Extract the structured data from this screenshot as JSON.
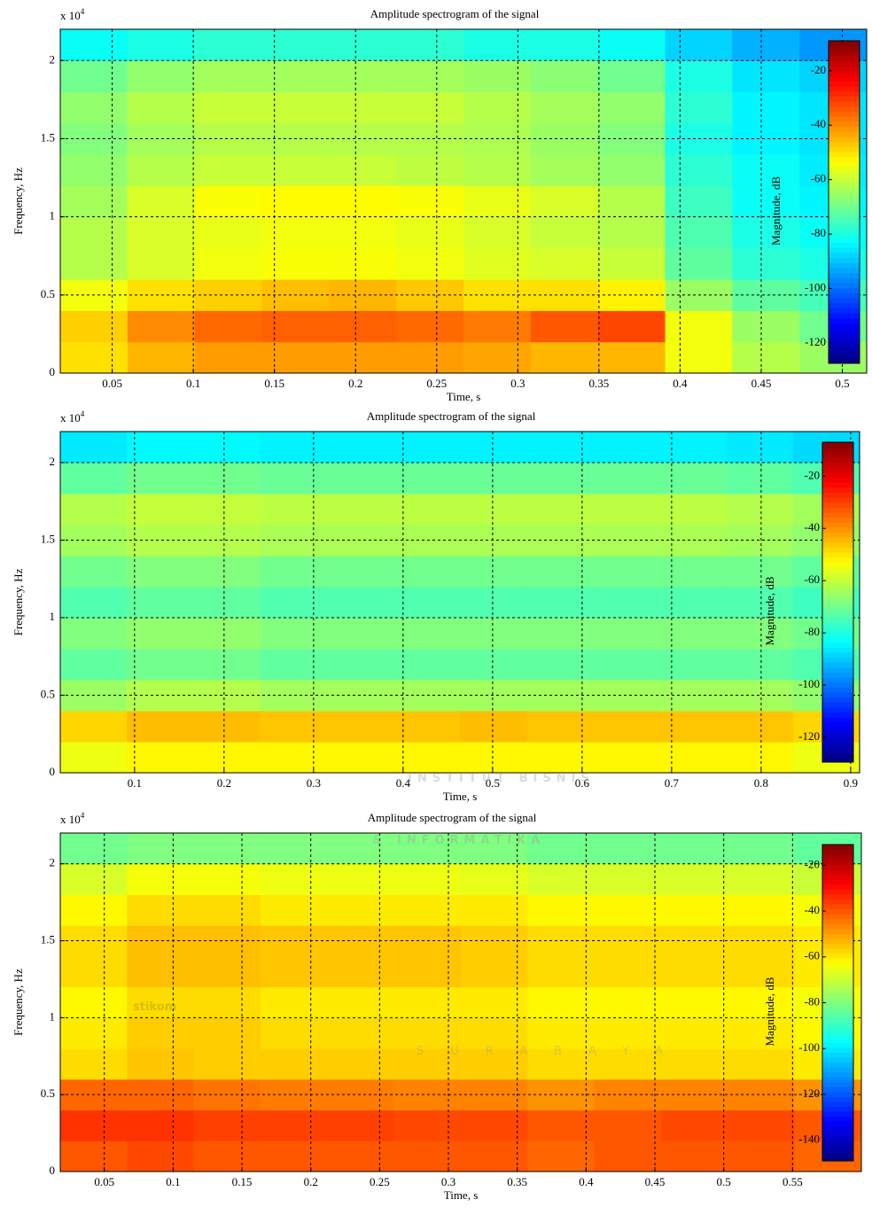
{
  "chart_data": [
    {
      "type": "heatmap",
      "title": "Amplitude spectrogram of the signal",
      "x_label": "Time, s",
      "y_label": "Frequency, Hz",
      "y_scale_label": "x 10",
      "y_scale_exponent": "4",
      "colorbar_label": "Magnitude, dB",
      "colormap": "jet",
      "grid": true,
      "xlim": [
        0.018,
        0.515
      ],
      "ylim": [
        0,
        2.2
      ],
      "clim": [
        -127.5,
        -9
      ],
      "xticks": [
        0.05,
        0.1,
        0.15,
        0.2,
        0.25,
        0.3,
        0.35,
        0.4,
        0.45,
        0.5
      ],
      "yticks": [
        0,
        0.5,
        1,
        1.5,
        2
      ],
      "cticks": [
        -20,
        -40,
        -60,
        -80,
        -100,
        -120
      ],
      "z": [
        [
          -50,
          -45,
          -42,
          -42,
          -42,
          -42,
          -43,
          -45,
          -45,
          -55,
          -62,
          -65
        ],
        [
          -48,
          -40,
          -36,
          -35,
          -35,
          -36,
          -38,
          -34,
          -32,
          -55,
          -65,
          -70
        ],
        [
          -55,
          -50,
          -48,
          -46,
          -45,
          -47,
          -50,
          -50,
          -52,
          -65,
          -72,
          -75
        ],
        [
          -62,
          -58,
          -55,
          -54,
          -54,
          -55,
          -57,
          -58,
          -60,
          -72,
          -78,
          -80
        ],
        [
          -62,
          -58,
          -56,
          -55,
          -55,
          -56,
          -58,
          -60,
          -62,
          -74,
          -80,
          -82
        ],
        [
          -64,
          -58,
          -54,
          -53,
          -53,
          -54,
          -56,
          -58,
          -62,
          -76,
          -82,
          -84
        ],
        [
          -66,
          -62,
          -60,
          -60,
          -60,
          -61,
          -62,
          -64,
          -66,
          -78,
          -82,
          -85
        ],
        [
          -68,
          -64,
          -62,
          -62,
          -62,
          -62,
          -63,
          -65,
          -68,
          -80,
          -84,
          -86
        ],
        [
          -66,
          -62,
          -60,
          -60,
          -60,
          -60,
          -62,
          -64,
          -66,
          -78,
          -84,
          -86
        ],
        [
          -70,
          -66,
          -64,
          -64,
          -64,
          -64,
          -65,
          -67,
          -70,
          -80,
          -86,
          -88
        ],
        [
          -82,
          -80,
          -78,
          -78,
          -78,
          -78,
          -80,
          -80,
          -82,
          -88,
          -92,
          -95
        ]
      ]
    },
    {
      "type": "heatmap",
      "title": "Amplitude spectrogram of the signal",
      "x_label": "Time, s",
      "y_label": "Frequency, Hz",
      "y_scale_label": "x 10",
      "y_scale_exponent": "4",
      "colorbar_label": "Magnitude, dB",
      "colormap": "jet",
      "grid": true,
      "xlim": [
        0.017,
        0.91
      ],
      "ylim": [
        0,
        2.2
      ],
      "clim": [
        -129.5,
        -7
      ],
      "xticks": [
        0.1,
        0.2,
        0.3,
        0.4,
        0.5,
        0.6,
        0.7,
        0.8,
        0.9
      ],
      "yticks": [
        0,
        0.5,
        1,
        1.5,
        2
      ],
      "cticks": [
        -20,
        -40,
        -60,
        -80,
        -100,
        -120
      ],
      "z": [
        [
          -55,
          -52,
          -52,
          -52,
          -52,
          -52,
          -52,
          -52,
          -52,
          -52,
          -52,
          -55
        ],
        [
          -48,
          -45,
          -45,
          -46,
          -46,
          -46,
          -45,
          -46,
          -46,
          -46,
          -46,
          -48
        ],
        [
          -65,
          -62,
          -62,
          -64,
          -64,
          -64,
          -64,
          -64,
          -64,
          -64,
          -64,
          -66
        ],
        [
          -72,
          -70,
          -70,
          -72,
          -72,
          -72,
          -72,
          -72,
          -72,
          -72,
          -72,
          -74
        ],
        [
          -68,
          -66,
          -66,
          -68,
          -68,
          -68,
          -68,
          -68,
          -68,
          -68,
          -68,
          -70
        ],
        [
          -74,
          -72,
          -72,
          -74,
          -74,
          -74,
          -74,
          -74,
          -74,
          -74,
          -74,
          -76
        ],
        [
          -70,
          -68,
          -68,
          -70,
          -70,
          -70,
          -70,
          -70,
          -70,
          -70,
          -70,
          -72
        ],
        [
          -64,
          -62,
          -62,
          -63,
          -63,
          -63,
          -63,
          -63,
          -63,
          -63,
          -64,
          -66
        ],
        [
          -62,
          -60,
          -60,
          -61,
          -61,
          -61,
          -61,
          -61,
          -61,
          -61,
          -62,
          -64
        ],
        [
          -72,
          -70,
          -70,
          -71,
          -71,
          -71,
          -71,
          -71,
          -71,
          -71,
          -72,
          -74
        ],
        [
          -86,
          -84,
          -84,
          -85,
          -85,
          -85,
          -85,
          -85,
          -85,
          -85,
          -86,
          -88
        ]
      ]
    },
    {
      "type": "heatmap",
      "title": "Amplitude spectrogram of the signal",
      "x_label": "Time, s",
      "y_label": "Frequency, Hz",
      "y_scale_label": "x 10",
      "y_scale_exponent": "4",
      "colorbar_label": "Magnitude, dB",
      "colormap": "jet",
      "grid": true,
      "xlim": [
        0.018,
        0.6
      ],
      "ylim": [
        0,
        2.2
      ],
      "clim": [
        -149,
        -11
      ],
      "xticks": [
        0.05,
        0.1,
        0.15,
        0.2,
        0.25,
        0.3,
        0.35,
        0.4,
        0.45,
        0.5,
        0.55
      ],
      "yticks": [
        0,
        0.5,
        1,
        1.5,
        2
      ],
      "cticks": [
        -20,
        -40,
        -60,
        -80,
        -100,
        -120,
        -140
      ],
      "z": [
        [
          -40,
          -38,
          -40,
          -40,
          -40,
          -40,
          -40,
          -42,
          -40,
          -40,
          -40,
          -42
        ],
        [
          -35,
          -35,
          -37,
          -37,
          -37,
          -38,
          -38,
          -40,
          -40,
          -38,
          -38,
          -40
        ],
        [
          -42,
          -42,
          -44,
          -45,
          -45,
          -46,
          -46,
          -48,
          -46,
          -46,
          -46,
          -48
        ],
        [
          -58,
          -55,
          -56,
          -56,
          -56,
          -56,
          -56,
          -58,
          -58,
          -58,
          -58,
          -60
        ],
        [
          -60,
          -56,
          -56,
          -58,
          -58,
          -58,
          -58,
          -60,
          -60,
          -60,
          -60,
          -62
        ],
        [
          -62,
          -58,
          -58,
          -60,
          -60,
          -60,
          -60,
          -62,
          -62,
          -62,
          -62,
          -64
        ],
        [
          -58,
          -54,
          -54,
          -55,
          -55,
          -55,
          -56,
          -58,
          -58,
          -58,
          -58,
          -60
        ],
        [
          -58,
          -54,
          -54,
          -55,
          -55,
          -55,
          -56,
          -58,
          -58,
          -58,
          -58,
          -60
        ],
        [
          -62,
          -58,
          -58,
          -60,
          -60,
          -60,
          -60,
          -62,
          -62,
          -62,
          -62,
          -64
        ],
        [
          -68,
          -64,
          -64,
          -65,
          -65,
          -65,
          -66,
          -68,
          -68,
          -68,
          -68,
          -70
        ],
        [
          -82,
          -80,
          -80,
          -80,
          -80,
          -80,
          -80,
          -82,
          -82,
          -82,
          -82,
          -84
        ]
      ]
    }
  ],
  "watermark": {
    "lines": [
      "INSTITUT BISNIS",
      "& INFORMATIKA",
      "stikom",
      "SURABAYA"
    ]
  }
}
